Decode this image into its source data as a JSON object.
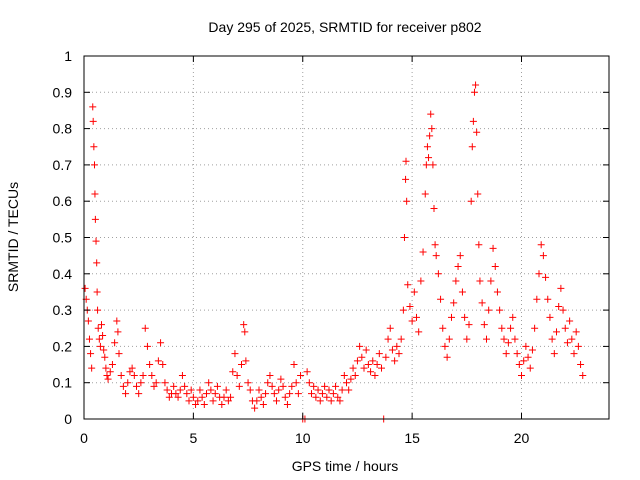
{
  "chart_data": {
    "type": "scatter",
    "title": "Day 295 of 2025, SRMTID for receiver p802",
    "xlabel": "GPS time / hours",
    "ylabel": "SRMTID / TECUs",
    "xlim": [
      0,
      24
    ],
    "ylim": [
      0,
      1
    ],
    "x_ticks": [
      "0",
      "5",
      "10",
      "15",
      "20"
    ],
    "x_tick_values": [
      0,
      5,
      10,
      15,
      20
    ],
    "y_ticks": [
      "0",
      "0.1",
      "0.2",
      "0.3",
      "0.4",
      "0.5",
      "0.6",
      "0.7",
      "0.8",
      "0.9",
      "1"
    ],
    "y_tick_values": [
      0,
      0.1,
      0.2,
      0.3,
      0.4,
      0.5,
      0.6,
      0.7,
      0.8,
      0.9,
      1
    ],
    "grid": true,
    "marker": "plus",
    "color": "#ff0000",
    "series": [
      {
        "name": "SRMTID",
        "points": [
          [
            0.05,
            0.36
          ],
          [
            0.1,
            0.33
          ],
          [
            0.15,
            0.3
          ],
          [
            0.2,
            0.27
          ],
          [
            0.25,
            0.22
          ],
          [
            0.3,
            0.18
          ],
          [
            0.35,
            0.14
          ],
          [
            0.4,
            0.86
          ],
          [
            0.42,
            0.82
          ],
          [
            0.45,
            0.75
          ],
          [
            0.48,
            0.7
          ],
          [
            0.5,
            0.62
          ],
          [
            0.52,
            0.55
          ],
          [
            0.55,
            0.49
          ],
          [
            0.58,
            0.43
          ],
          [
            0.6,
            0.35
          ],
          [
            0.62,
            0.3
          ],
          [
            0.65,
            0.25
          ],
          [
            0.7,
            0.22
          ],
          [
            0.75,
            0.2
          ],
          [
            0.8,
            0.26
          ],
          [
            0.85,
            0.23
          ],
          [
            0.9,
            0.19
          ],
          [
            0.95,
            0.17
          ],
          [
            1.0,
            0.14
          ],
          [
            1.05,
            0.12
          ],
          [
            1.1,
            0.11
          ],
          [
            1.2,
            0.13
          ],
          [
            1.3,
            0.15
          ],
          [
            1.4,
            0.21
          ],
          [
            1.5,
            0.27
          ],
          [
            1.55,
            0.24
          ],
          [
            1.6,
            0.18
          ],
          [
            1.7,
            0.12
          ],
          [
            1.8,
            0.09
          ],
          [
            1.9,
            0.07
          ],
          [
            2.0,
            0.1
          ],
          [
            2.1,
            0.13
          ],
          [
            2.2,
            0.14
          ],
          [
            2.3,
            0.12
          ],
          [
            2.4,
            0.09
          ],
          [
            2.5,
            0.07
          ],
          [
            2.6,
            0.1
          ],
          [
            2.7,
            0.12
          ],
          [
            2.8,
            0.25
          ],
          [
            2.9,
            0.2
          ],
          [
            3.0,
            0.15
          ],
          [
            3.1,
            0.12
          ],
          [
            3.2,
            0.09
          ],
          [
            3.3,
            0.1
          ],
          [
            3.4,
            0.16
          ],
          [
            3.5,
            0.21
          ],
          [
            3.6,
            0.15
          ],
          [
            3.7,
            0.1
          ],
          [
            3.8,
            0.08
          ],
          [
            3.9,
            0.06
          ],
          [
            4.0,
            0.07
          ],
          [
            4.1,
            0.09
          ],
          [
            4.2,
            0.07
          ],
          [
            4.3,
            0.06
          ],
          [
            4.4,
            0.08
          ],
          [
            4.5,
            0.12
          ],
          [
            4.6,
            0.09
          ],
          [
            4.7,
            0.07
          ],
          [
            4.8,
            0.05
          ],
          [
            4.9,
            0.08
          ],
          [
            5.0,
            0.06
          ],
          [
            5.1,
            0.04
          ],
          [
            5.2,
            0.05
          ],
          [
            5.3,
            0.08
          ],
          [
            5.4,
            0.06
          ],
          [
            5.5,
            0.04
          ],
          [
            5.6,
            0.07
          ],
          [
            5.7,
            0.1
          ],
          [
            5.8,
            0.08
          ],
          [
            5.9,
            0.05
          ],
          [
            6.0,
            0.07
          ],
          [
            6.1,
            0.09
          ],
          [
            6.2,
            0.06
          ],
          [
            6.3,
            0.04
          ],
          [
            6.4,
            0.06
          ],
          [
            6.5,
            0.08
          ],
          [
            6.6,
            0.05
          ],
          [
            6.7,
            0.06
          ],
          [
            6.8,
            0.13
          ],
          [
            6.9,
            0.18
          ],
          [
            7.0,
            0.12
          ],
          [
            7.1,
            0.09
          ],
          [
            7.2,
            0.15
          ],
          [
            7.3,
            0.26
          ],
          [
            7.35,
            0.24
          ],
          [
            7.4,
            0.16
          ],
          [
            7.5,
            0.1
          ],
          [
            7.6,
            0.08
          ],
          [
            7.7,
            0.05
          ],
          [
            7.8,
            0.03
          ],
          [
            7.9,
            0.05
          ],
          [
            8.0,
            0.08
          ],
          [
            8.1,
            0.06
          ],
          [
            8.2,
            0.04
          ],
          [
            8.3,
            0.07
          ],
          [
            8.4,
            0.1
          ],
          [
            8.5,
            0.12
          ],
          [
            8.6,
            0.09
          ],
          [
            8.7,
            0.07
          ],
          [
            8.8,
            0.05
          ],
          [
            8.9,
            0.08
          ],
          [
            9.0,
            0.11
          ],
          [
            9.1,
            0.09
          ],
          [
            9.2,
            0.06
          ],
          [
            9.3,
            0.04
          ],
          [
            9.4,
            0.07
          ],
          [
            9.5,
            0.09
          ],
          [
            9.6,
            0.15
          ],
          [
            9.7,
            0.1
          ],
          [
            9.8,
            0.07
          ],
          [
            9.9,
            0.12
          ],
          [
            10.0,
            0.0
          ],
          [
            10.1,
            0.0
          ],
          [
            10.2,
            0.13
          ],
          [
            10.3,
            0.1
          ],
          [
            10.4,
            0.07
          ],
          [
            10.5,
            0.09
          ],
          [
            10.6,
            0.06
          ],
          [
            10.7,
            0.08
          ],
          [
            10.8,
            0.05
          ],
          [
            10.9,
            0.07
          ],
          [
            11.0,
            0.09
          ],
          [
            11.1,
            0.06
          ],
          [
            11.2,
            0.08
          ],
          [
            11.3,
            0.05
          ],
          [
            11.4,
            0.07
          ],
          [
            11.5,
            0.09
          ],
          [
            11.6,
            0.06
          ],
          [
            11.7,
            0.05
          ],
          [
            11.8,
            0.08
          ],
          [
            11.9,
            0.12
          ],
          [
            12.0,
            0.1
          ],
          [
            12.1,
            0.08
          ],
          [
            12.2,
            0.11
          ],
          [
            12.3,
            0.14
          ],
          [
            12.4,
            0.12
          ],
          [
            12.5,
            0.16
          ],
          [
            12.6,
            0.2
          ],
          [
            12.7,
            0.17
          ],
          [
            12.8,
            0.14
          ],
          [
            12.9,
            0.19
          ],
          [
            13.0,
            0.15
          ],
          [
            13.1,
            0.13
          ],
          [
            13.2,
            0.16
          ],
          [
            13.3,
            0.12
          ],
          [
            13.4,
            0.15
          ],
          [
            13.5,
            0.18
          ],
          [
            13.6,
            0.14
          ],
          [
            13.7,
            0.0
          ],
          [
            13.8,
            0.17
          ],
          [
            13.9,
            0.22
          ],
          [
            14.0,
            0.25
          ],
          [
            14.1,
            0.19
          ],
          [
            14.2,
            0.16
          ],
          [
            14.3,
            0.2
          ],
          [
            14.4,
            0.18
          ],
          [
            14.5,
            0.22
          ],
          [
            14.6,
            0.3
          ],
          [
            14.65,
            0.5
          ],
          [
            14.7,
            0.66
          ],
          [
            14.72,
            0.71
          ],
          [
            14.75,
            0.6
          ],
          [
            14.8,
            0.37
          ],
          [
            14.9,
            0.31
          ],
          [
            15.0,
            0.27
          ],
          [
            15.1,
            0.35
          ],
          [
            15.2,
            0.28
          ],
          [
            15.3,
            0.24
          ],
          [
            15.4,
            0.38
          ],
          [
            15.5,
            0.46
          ],
          [
            15.6,
            0.62
          ],
          [
            15.65,
            0.7
          ],
          [
            15.7,
            0.75
          ],
          [
            15.75,
            0.72
          ],
          [
            15.8,
            0.78
          ],
          [
            15.85,
            0.84
          ],
          [
            15.9,
            0.8
          ],
          [
            15.95,
            0.7
          ],
          [
            16.0,
            0.58
          ],
          [
            16.05,
            0.48
          ],
          [
            16.1,
            0.45
          ],
          [
            16.2,
            0.4
          ],
          [
            16.3,
            0.33
          ],
          [
            16.4,
            0.25
          ],
          [
            16.5,
            0.2
          ],
          [
            16.6,
            0.17
          ],
          [
            16.7,
            0.22
          ],
          [
            16.8,
            0.28
          ],
          [
            16.9,
            0.32
          ],
          [
            17.0,
            0.38
          ],
          [
            17.1,
            0.42
          ],
          [
            17.2,
            0.45
          ],
          [
            17.3,
            0.35
          ],
          [
            17.4,
            0.28
          ],
          [
            17.5,
            0.22
          ],
          [
            17.6,
            0.26
          ],
          [
            17.7,
            0.6
          ],
          [
            17.75,
            0.75
          ],
          [
            17.8,
            0.82
          ],
          [
            17.85,
            0.9
          ],
          [
            17.9,
            0.92
          ],
          [
            17.95,
            0.79
          ],
          [
            18.0,
            0.62
          ],
          [
            18.05,
            0.48
          ],
          [
            18.1,
            0.38
          ],
          [
            18.2,
            0.32
          ],
          [
            18.3,
            0.26
          ],
          [
            18.4,
            0.22
          ],
          [
            18.5,
            0.3
          ],
          [
            18.6,
            0.38
          ],
          [
            18.7,
            0.47
          ],
          [
            18.8,
            0.42
          ],
          [
            18.9,
            0.35
          ],
          [
            19.0,
            0.3
          ],
          [
            19.1,
            0.25
          ],
          [
            19.2,
            0.22
          ],
          [
            19.3,
            0.18
          ],
          [
            19.4,
            0.21
          ],
          [
            19.5,
            0.25
          ],
          [
            19.6,
            0.28
          ],
          [
            19.7,
            0.22
          ],
          [
            19.8,
            0.18
          ],
          [
            19.9,
            0.15
          ],
          [
            20.0,
            0.12
          ],
          [
            20.1,
            0.16
          ],
          [
            20.2,
            0.2
          ],
          [
            20.3,
            0.17
          ],
          [
            20.4,
            0.14
          ],
          [
            20.5,
            0.19
          ],
          [
            20.6,
            0.25
          ],
          [
            20.7,
            0.33
          ],
          [
            20.8,
            0.4
          ],
          [
            20.9,
            0.48
          ],
          [
            21.0,
            0.45
          ],
          [
            21.1,
            0.39
          ],
          [
            21.2,
            0.33
          ],
          [
            21.3,
            0.28
          ],
          [
            21.4,
            0.22
          ],
          [
            21.5,
            0.18
          ],
          [
            21.6,
            0.24
          ],
          [
            21.7,
            0.31
          ],
          [
            21.8,
            0.36
          ],
          [
            21.9,
            0.3
          ],
          [
            22.0,
            0.25
          ],
          [
            22.1,
            0.21
          ],
          [
            22.2,
            0.27
          ],
          [
            22.3,
            0.22
          ],
          [
            22.4,
            0.18
          ],
          [
            22.5,
            0.24
          ],
          [
            22.6,
            0.2
          ],
          [
            22.7,
            0.15
          ],
          [
            22.8,
            0.12
          ]
        ]
      }
    ]
  }
}
